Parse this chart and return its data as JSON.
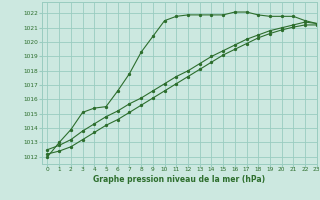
{
  "title": "Graphe pression niveau de la mer (hPa)",
  "bg_color": "#cce8e0",
  "grid_color": "#99ccc0",
  "line_color": "#2d6e2d",
  "xlim": [
    -0.5,
    23
  ],
  "ylim": [
    1011.5,
    1022.8
  ],
  "yticks": [
    1012,
    1013,
    1014,
    1015,
    1016,
    1017,
    1018,
    1019,
    1020,
    1021,
    1022
  ],
  "xticks": [
    0,
    1,
    2,
    3,
    4,
    5,
    6,
    7,
    8,
    9,
    10,
    11,
    12,
    13,
    14,
    15,
    16,
    17,
    18,
    19,
    20,
    21,
    22,
    23
  ],
  "line1_x": [
    0,
    1,
    2,
    3,
    4,
    5,
    6,
    7,
    8,
    9,
    10,
    11,
    12,
    13,
    14,
    15,
    16,
    17,
    18,
    19,
    20,
    21,
    22,
    23
  ],
  "line1_y": [
    1012.0,
    1013.0,
    1013.9,
    1015.1,
    1015.4,
    1015.5,
    1016.6,
    1017.8,
    1019.3,
    1020.4,
    1021.5,
    1021.8,
    1021.9,
    1021.9,
    1021.9,
    1021.9,
    1022.1,
    1022.1,
    1021.9,
    1021.8,
    1021.8,
    1021.8,
    1021.5,
    1021.3
  ],
  "line2_x": [
    0,
    1,
    2,
    3,
    4,
    5,
    6,
    7,
    8,
    9,
    10,
    11,
    12,
    13,
    14,
    15,
    16,
    17,
    18,
    19,
    20,
    21,
    22,
    23
  ],
  "line2_y": [
    1012.5,
    1012.8,
    1013.2,
    1013.8,
    1014.3,
    1014.8,
    1015.2,
    1015.7,
    1016.1,
    1016.6,
    1017.1,
    1017.6,
    1018.0,
    1018.5,
    1019.0,
    1019.4,
    1019.8,
    1020.2,
    1020.5,
    1020.8,
    1021.0,
    1021.2,
    1021.4,
    1021.3
  ],
  "line3_x": [
    0,
    1,
    2,
    3,
    4,
    5,
    6,
    7,
    8,
    9,
    10,
    11,
    12,
    13,
    14,
    15,
    16,
    17,
    18,
    19,
    20,
    21,
    22,
    23
  ],
  "line3_y": [
    1012.2,
    1012.4,
    1012.7,
    1013.2,
    1013.7,
    1014.2,
    1014.6,
    1015.1,
    1015.6,
    1016.1,
    1016.6,
    1017.1,
    1017.6,
    1018.1,
    1018.6,
    1019.1,
    1019.5,
    1019.9,
    1020.3,
    1020.6,
    1020.85,
    1021.05,
    1021.2,
    1021.2
  ]
}
